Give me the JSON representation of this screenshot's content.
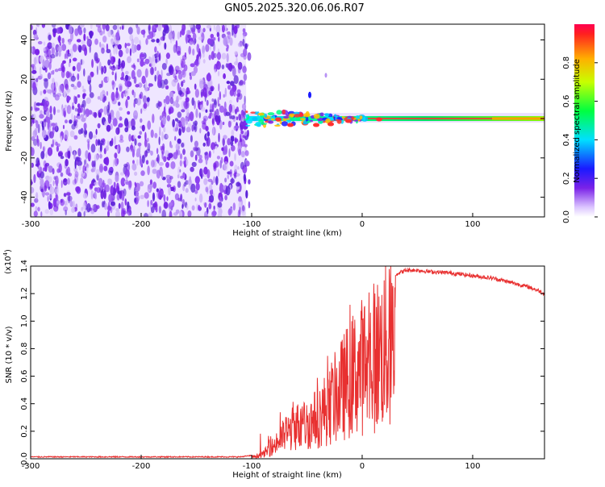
{
  "title": "GN05.2025.320.06.06.R07",
  "colors": {
    "snr_line": "#e83030",
    "scatter_purple": "#7a22e8"
  },
  "chart_data": [
    {
      "id": "spectrogram",
      "type": "heatmap",
      "xlabel": "Height of straight line (km)",
      "ylabel": "Frequency (Hz)",
      "xlim": [
        -300,
        165
      ],
      "ylim": [
        -50,
        48
      ],
      "xticks": [
        "-300",
        "-200",
        "-100",
        "0",
        "100"
      ],
      "yticks": [
        "40",
        "20",
        "0",
        "-20",
        "-40"
      ],
      "noise_region_km": [
        -300,
        -105
      ],
      "carrier_frequency_hz": 0,
      "colorbar": {
        "label": "Normalized spectral amplitude",
        "range": [
          0,
          1
        ],
        "ticks": [
          "0.0",
          "0.2",
          "0.4",
          "0.6",
          "0.8"
        ],
        "colormap": "rainbow"
      }
    },
    {
      "id": "snr",
      "type": "line",
      "xlabel": "Height of straight line (km)",
      "ylabel": "SNR (10 * v/v)",
      "yscale_note": "(x10",
      "yscale_exp": "4",
      "xlim": [
        -300,
        165
      ],
      "ylim": [
        0,
        1.4
      ],
      "xticks": [
        "-300",
        "-200",
        "-100",
        "0",
        "100"
      ],
      "yticks": [
        "0.0",
        "0.2",
        "0.4",
        "0.6",
        "0.8",
        "1.0",
        "1.2",
        "1.4"
      ],
      "series": [
        {
          "x": [
            -300,
            -250,
            -200,
            -150,
            -110,
            -100,
            -90,
            -80,
            -70,
            -60,
            -50,
            -40,
            -30,
            -20,
            -10,
            0,
            10,
            20,
            30,
            40,
            50,
            60,
            70,
            80,
            90,
            100,
            110,
            120,
            130,
            140,
            150,
            160,
            165
          ],
          "values": [
            0.01,
            0.01,
            0.01,
            0.01,
            0.01,
            0.02,
            0.05,
            0.15,
            0.28,
            0.38,
            0.4,
            0.48,
            0.62,
            0.78,
            0.95,
            1.08,
            1.18,
            1.28,
            1.34,
            1.37,
            1.37,
            1.36,
            1.355,
            1.35,
            1.34,
            1.33,
            1.32,
            1.31,
            1.29,
            1.27,
            1.25,
            1.22,
            1.2
          ]
        }
      ]
    }
  ]
}
